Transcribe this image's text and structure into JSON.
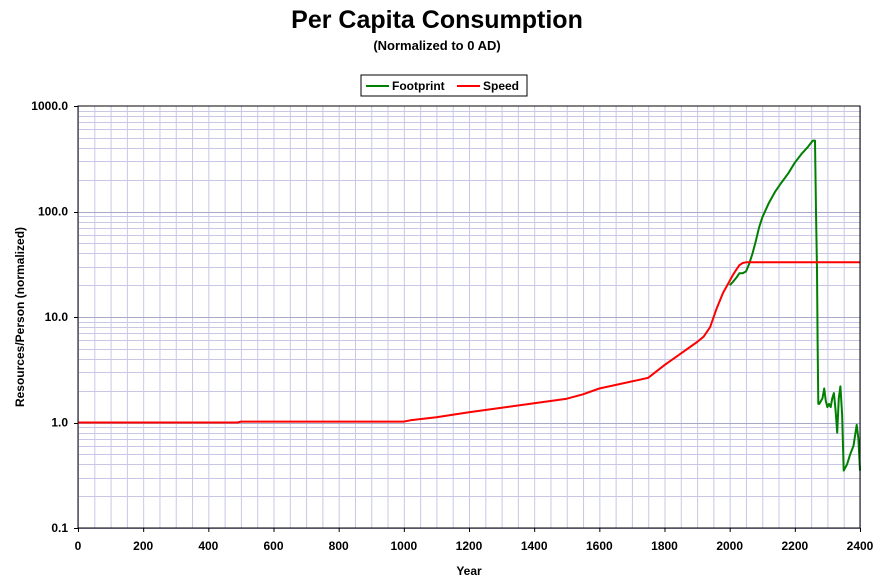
{
  "chart_data": {
    "type": "line",
    "title": "Per Capita Consumption",
    "subtitle": "(Normalized to 0 AD)",
    "xlabel": "Year",
    "ylabel": "Resources/Person (normalized)",
    "xlim": [
      0,
      2400
    ],
    "ylim": [
      0.1,
      1000
    ],
    "yscale": "log",
    "grid": true,
    "legend_position": "top-center",
    "x_ticks": [
      "0",
      "200",
      "400",
      "600",
      "800",
      "1000",
      "1200",
      "1400",
      "1600",
      "1800",
      "2000",
      "2200",
      "2400"
    ],
    "x_tick_values": [
      0,
      200,
      400,
      600,
      800,
      1000,
      1200,
      1400,
      1600,
      1800,
      2000,
      2200,
      2400
    ],
    "y_ticks": [
      "0.1",
      "1.0",
      "10.0",
      "100.0",
      "1000.0"
    ],
    "y_tick_values": [
      0.1,
      1,
      10,
      100,
      1000
    ],
    "series": [
      {
        "name": "Footprint",
        "color": "#008000",
        "x": [
          2000,
          2010,
          2020,
          2030,
          2040,
          2050,
          2060,
          2070,
          2080,
          2090,
          2100,
          2120,
          2140,
          2160,
          2180,
          2200,
          2220,
          2240,
          2255,
          2262,
          2265,
          2268,
          2270,
          2272,
          2275,
          2280,
          2285,
          2290,
          2295,
          2300,
          2305,
          2310,
          2315,
          2320,
          2325,
          2330,
          2335,
          2340,
          2345,
          2350,
          2360,
          2370,
          2380,
          2390,
          2395,
          2400
        ],
        "y": [
          20,
          21.5,
          23.5,
          26,
          26,
          27,
          32,
          40,
          52,
          70,
          88,
          120,
          155,
          190,
          230,
          290,
          350,
          410,
          470,
          470,
          100,
          28,
          6,
          1.5,
          1.5,
          1.6,
          1.7,
          2.1,
          1.6,
          1.4,
          1.5,
          1.4,
          1.7,
          1.9,
          1.3,
          0.8,
          1.7,
          2.2,
          1.2,
          0.35,
          0.4,
          0.5,
          0.6,
          0.95,
          0.7,
          0.35
        ]
      },
      {
        "name": "Speed",
        "color": "#ff0000",
        "x": [
          0,
          100,
          200,
          300,
          400,
          490,
          500,
          600,
          700,
          800,
          900,
          1000,
          1020,
          1100,
          1200,
          1300,
          1400,
          1500,
          1550,
          1600,
          1700,
          1750,
          1800,
          1850,
          1900,
          1920,
          1940,
          1960,
          1980,
          2000,
          2010,
          2020,
          2030,
          2040,
          2050,
          2060,
          2100,
          2200,
          2300,
          2400
        ],
        "y": [
          1.0,
          1.0,
          1.0,
          1.0,
          1.0,
          1.0,
          1.02,
          1.02,
          1.02,
          1.02,
          1.02,
          1.02,
          1.05,
          1.12,
          1.25,
          1.38,
          1.52,
          1.68,
          1.85,
          2.1,
          2.45,
          2.65,
          3.5,
          4.5,
          5.8,
          6.5,
          8,
          12,
          17,
          22,
          25,
          28,
          31,
          32.5,
          33,
          33,
          33,
          33,
          33,
          33
        ]
      }
    ]
  }
}
